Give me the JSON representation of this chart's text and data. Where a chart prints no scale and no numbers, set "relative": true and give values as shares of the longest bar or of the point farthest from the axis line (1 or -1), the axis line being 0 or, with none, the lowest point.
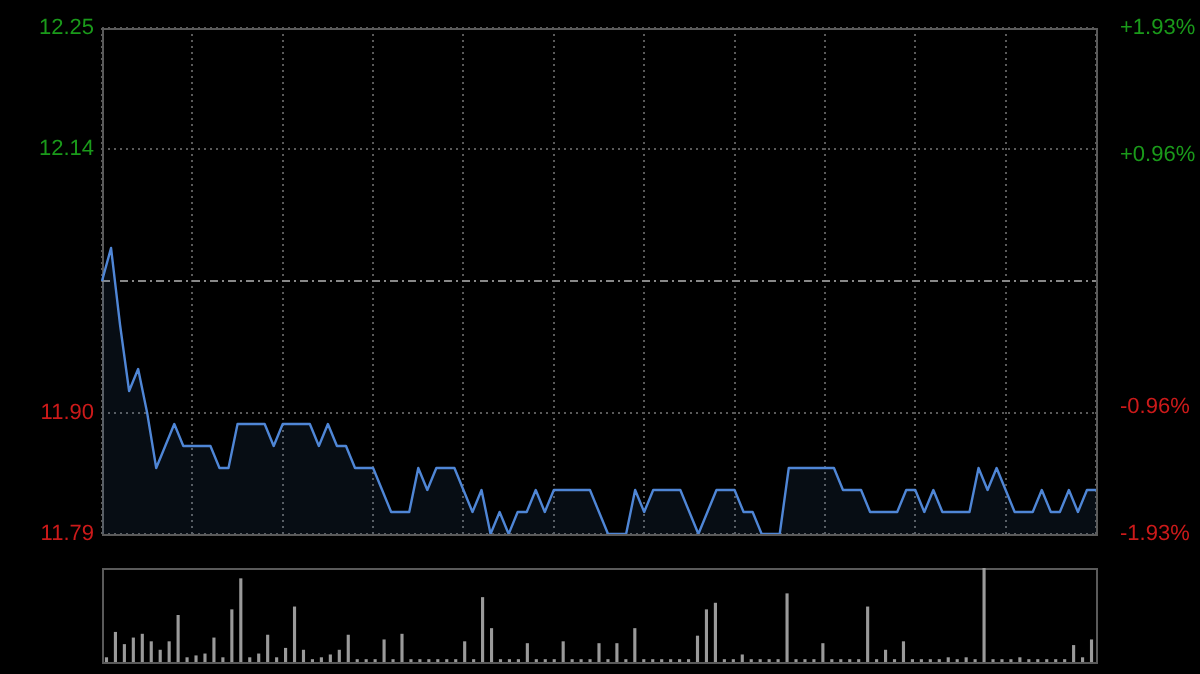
{
  "chart_data": [
    {
      "type": "area",
      "categories": [
        null,
        null,
        null,
        null,
        null,
        null,
        null,
        null,
        null,
        null,
        null,
        null,
        null,
        null,
        null,
        null,
        null,
        null,
        null,
        null,
        null,
        null,
        null,
        null,
        null,
        null,
        null,
        null,
        null,
        null,
        null,
        null,
        null,
        null,
        null,
        null,
        null,
        null,
        null,
        null,
        null,
        null,
        null,
        null,
        null,
        null,
        null,
        null,
        null,
        null,
        null,
        null,
        null,
        null,
        null,
        null,
        null,
        null,
        null,
        null,
        null,
        null,
        null,
        null,
        null,
        null,
        null,
        null,
        null,
        null,
        null,
        null,
        null,
        null,
        null,
        null,
        null,
        null,
        null,
        null,
        null,
        null,
        null,
        null,
        null,
        null,
        null,
        null,
        null,
        null,
        null,
        null,
        null,
        null,
        null,
        null,
        null,
        null,
        null,
        null,
        null,
        null,
        null,
        null,
        null,
        null,
        null,
        null,
        null,
        null,
        null
      ],
      "series": [
        {
          "color": "#4f86d6",
          "values": [
            12.02,
            12.05,
            11.98,
            11.92,
            11.94,
            11.9,
            11.85,
            11.87,
            11.89,
            11.87,
            11.87,
            11.87,
            11.87,
            11.85,
            11.85,
            11.89,
            11.89,
            11.89,
            11.89,
            11.87,
            11.89,
            11.89,
            11.89,
            11.89,
            11.87,
            11.89,
            11.87,
            11.87,
            11.85,
            11.85,
            11.85,
            11.83,
            11.81,
            11.81,
            11.81,
            11.85,
            11.83,
            11.85,
            11.85,
            11.85,
            11.83,
            11.81,
            11.83,
            11.79,
            11.81,
            11.79,
            11.81,
            11.81,
            11.83,
            11.81,
            11.83,
            11.83,
            11.83,
            11.83,
            11.83,
            11.81,
            11.79,
            11.79,
            11.79,
            11.83,
            11.81,
            11.83,
            11.83,
            11.83,
            11.83,
            11.81,
            11.79,
            11.81,
            11.83,
            11.83,
            11.83,
            11.81,
            11.81,
            11.79,
            11.79,
            11.79,
            11.85,
            11.85,
            11.85,
            11.85,
            11.85,
            11.85,
            11.83,
            11.83,
            11.83,
            11.81,
            11.81,
            11.81,
            11.81,
            11.83,
            11.83,
            11.81,
            11.83,
            11.81,
            11.81,
            11.81,
            11.81,
            11.85,
            11.83,
            11.85,
            11.83,
            11.81,
            11.81,
            11.81,
            11.83,
            11.81,
            11.81,
            11.83,
            11.81,
            11.83,
            11.83
          ]
        }
      ],
      "ylim": [
        11.79,
        12.25
      ],
      "yticks": [
        11.79,
        {
          "value": 11.9,
          "label": "11.90"
        },
        12.14,
        12.25
      ],
      "y2lim": [
        -1.93,
        1.93
      ],
      "y2ticks": [
        {
          "value": -1.93,
          "label": "-1.93%"
        },
        {
          "value": -0.96,
          "label": "-0.96%"
        },
        {
          "value": 0.96,
          "label": "+0.96%"
        },
        {
          "value": 1.93,
          "label": "+1.93%"
        }
      ],
      "ref_lines": [
        {
          "axis": "y",
          "value": 12.02,
          "line_style": "dashed",
          "color": "#888888"
        }
      ],
      "grid": true,
      "marker": "none",
      "tick_labels": "y",
      "legend": false
    },
    {
      "type": "bar",
      "relative": true,
      "color": "#9a9a9a",
      "categories": [
        null,
        null,
        null,
        null,
        null,
        null,
        null,
        null,
        null,
        null,
        null,
        null,
        null,
        null,
        null,
        null,
        null,
        null,
        null,
        null,
        null,
        null,
        null,
        null,
        null,
        null,
        null,
        null,
        null,
        null,
        null,
        null,
        null,
        null,
        null,
        null,
        null,
        null,
        null,
        null,
        null,
        null,
        null,
        null,
        null,
        null,
        null,
        null,
        null,
        null,
        null,
        null,
        null,
        null,
        null,
        null,
        null,
        null,
        null,
        null,
        null,
        null,
        null,
        null,
        null,
        null,
        null,
        null,
        null,
        null,
        null,
        null,
        null,
        null,
        null,
        null,
        null,
        null,
        null,
        null,
        null,
        null,
        null,
        null,
        null,
        null,
        null,
        null,
        null,
        null,
        null,
        null,
        null,
        null,
        null,
        null,
        null,
        null,
        null,
        null,
        null,
        null,
        null,
        null,
        null,
        null,
        null,
        null,
        null,
        null,
        null
      ],
      "values": [
        0.05,
        0.32,
        0.19,
        0.26,
        0.3,
        0.22,
        0.13,
        0.22,
        0.5,
        0.05,
        0.07,
        0.09,
        0.26,
        0.05,
        0.56,
        0.89,
        0.05,
        0.09,
        0.29,
        0.05,
        0.15,
        0.59,
        0.13,
        0.03,
        0.05,
        0.08,
        0.13,
        0.29,
        0.03,
        0.03,
        0.03,
        0.24,
        0.03,
        0.3,
        0.03,
        0.03,
        0.03,
        0.03,
        0.03,
        0.03,
        0.22,
        0.03,
        0.69,
        0.36,
        0.03,
        0.03,
        0.03,
        0.2,
        0.03,
        0.03,
        0.03,
        0.22,
        0.03,
        0.03,
        0.03,
        0.2,
        0.03,
        0.2,
        0.03,
        0.36,
        0.03,
        0.03,
        0.03,
        0.03,
        0.03,
        0.03,
        0.28,
        0.56,
        0.63,
        0.03,
        0.03,
        0.08,
        0.03,
        0.03,
        0.03,
        0.03,
        0.73,
        0.03,
        0.03,
        0.03,
        0.2,
        0.03,
        0.03,
        0.03,
        0.03,
        0.59,
        0.03,
        0.13,
        0.03,
        0.22,
        0.03,
        0.03,
        0.03,
        0.03,
        0.05,
        0.03,
        0.05,
        0.03,
        1.0,
        0.03,
        0.03,
        0.03,
        0.05,
        0.03,
        0.03,
        0.03,
        0.03,
        0.03,
        0.18,
        0.05,
        0.24
      ],
      "legend": false
    }
  ]
}
